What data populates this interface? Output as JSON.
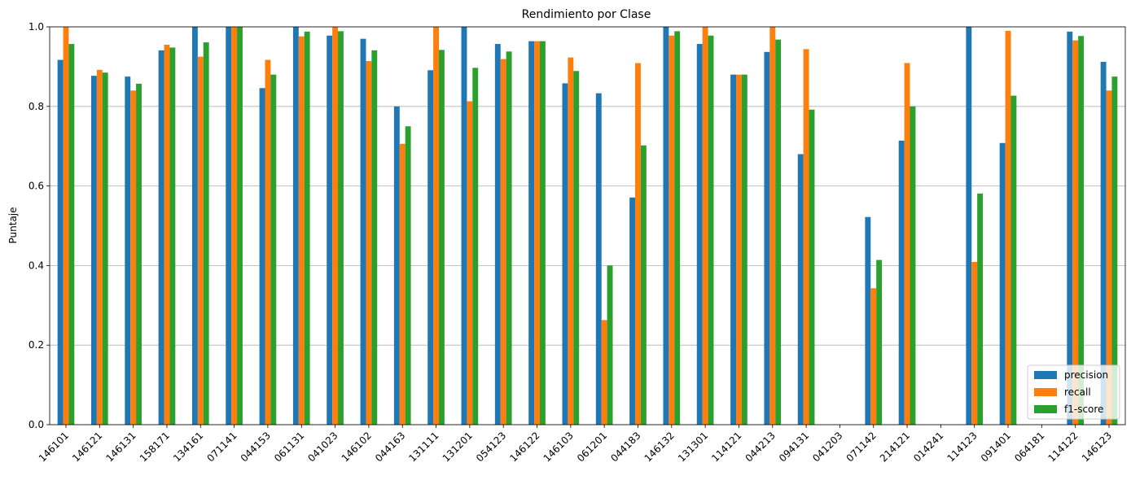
{
  "chart_data": {
    "type": "bar",
    "title": "Rendimiento por Clase",
    "xlabel": "",
    "ylabel": "Puntaje",
    "ylim": [
      0,
      1.0
    ],
    "yticks": [
      "0.0",
      "0.2",
      "0.4",
      "0.6",
      "0.8",
      "1.0"
    ],
    "grid": "y",
    "legend_position": "lower right",
    "categories": [
      "146101",
      "146121",
      "146131",
      "158171",
      "134161",
      "071141",
      "044153",
      "061131",
      "041023",
      "146102",
      "044163",
      "131111",
      "131201",
      "054123",
      "146122",
      "146103",
      "061201",
      "044183",
      "146132",
      "131301",
      "114121",
      "044213",
      "094131",
      "041203",
      "071142",
      "214121",
      "014241",
      "114123",
      "091401",
      "064181",
      "114122",
      "146123"
    ],
    "series": [
      {
        "name": "precision",
        "color": "#1f77b4",
        "values": [
          0.917,
          0.877,
          0.875,
          0.941,
          1.0,
          1.0,
          0.846,
          1.0,
          0.978,
          0.97,
          0.8,
          0.891,
          1.0,
          0.957,
          0.964,
          0.858,
          0.833,
          0.571,
          1.0,
          0.957,
          0.88,
          0.937,
          0.68,
          0.0,
          0.522,
          0.714,
          0.0,
          1.0,
          0.708,
          0.0,
          0.988,
          0.912
        ]
      },
      {
        "name": "recall",
        "color": "#ff7f0e",
        "values": [
          1.0,
          0.892,
          0.84,
          0.955,
          0.925,
          1.0,
          0.917,
          0.976,
          1.0,
          0.914,
          0.706,
          1.0,
          0.813,
          0.919,
          0.964,
          0.923,
          0.263,
          0.909,
          0.978,
          1.0,
          0.88,
          1.0,
          0.944,
          0.0,
          0.343,
          0.909,
          0.0,
          0.409,
          0.99,
          0.0,
          0.966,
          0.84
        ]
      },
      {
        "name": "f1-score",
        "color": "#2ca02c",
        "values": [
          0.957,
          0.885,
          0.857,
          0.948,
          0.961,
          1.0,
          0.88,
          0.988,
          0.989,
          0.941,
          0.75,
          0.942,
          0.897,
          0.938,
          0.964,
          0.889,
          0.4,
          0.702,
          0.989,
          0.978,
          0.88,
          0.968,
          0.792,
          0.0,
          0.414,
          0.8,
          0.0,
          0.581,
          0.827,
          0.0,
          0.977,
          0.875
        ]
      }
    ]
  }
}
